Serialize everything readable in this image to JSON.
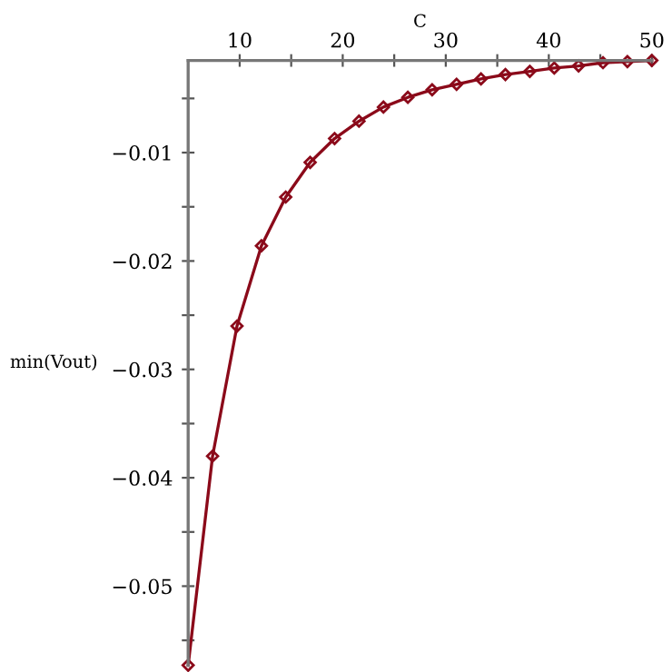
{
  "chart_data": {
    "type": "line",
    "xlabel": "C",
    "ylabel": "min(Vout)",
    "x": [
      5,
      7.37,
      9.74,
      12.11,
      14.47,
      16.84,
      19.21,
      21.58,
      23.95,
      26.32,
      28.68,
      31.05,
      33.42,
      35.79,
      38.16,
      40.53,
      42.89,
      45.26,
      47.63,
      50
    ],
    "series": [
      {
        "color": "#8b0a1a",
        "values": [
          -0.0573,
          -0.038,
          -0.026,
          -0.0186,
          -0.0141,
          -0.0109,
          -0.0087,
          -0.0071,
          -0.0058,
          -0.0049,
          -0.0042,
          -0.0037,
          -0.0032,
          -0.0028,
          -0.0025,
          -0.0022,
          -0.002,
          -0.0017,
          -0.0016,
          -0.0015
        ]
      }
    ],
    "xlim": [
      5,
      50
    ],
    "ylim": [
      -0.0573,
      -0.0015
    ],
    "xticks": [
      10,
      {
        "value": 15,
        "label": null
      },
      20,
      {
        "value": 25,
        "label": null
      },
      30,
      {
        "value": 35,
        "label": null
      },
      40,
      {
        "value": 45,
        "label": null
      },
      50
    ],
    "yticks": [
      {
        "value": -0.055,
        "label": null
      },
      {
        "value": -0.05,
        "label": "−0.05"
      },
      {
        "value": -0.045,
        "label": null
      },
      {
        "value": -0.04,
        "label": "−0.04"
      },
      {
        "value": -0.035,
        "label": null
      },
      {
        "value": -0.03,
        "label": "−0.03"
      },
      {
        "value": -0.025,
        "label": null
      },
      {
        "value": -0.02,
        "label": "−0.02"
      },
      {
        "value": -0.015,
        "label": null
      },
      {
        "value": -0.01,
        "label": "−0.01"
      },
      {
        "value": -0.005,
        "label": null
      }
    ],
    "marker": "diamond",
    "line_style": "solid",
    "grid": false,
    "legend": false
  }
}
